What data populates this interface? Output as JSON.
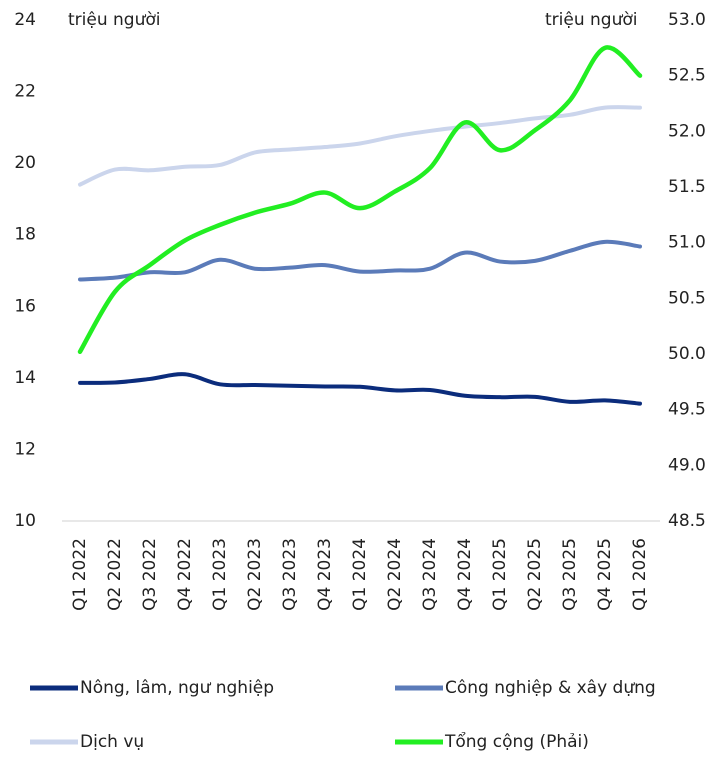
{
  "chart_data": {
    "type": "line",
    "y_label": "triệu người",
    "y2_label": "triệu người",
    "categories": [
      "Q1 2022",
      "Q2 2022",
      "Q3 2022",
      "Q4 2022",
      "Q1 2023",
      "Q2 2023",
      "Q3 2023",
      "Q4 2023",
      "Q1 2024",
      "Q2 2024",
      "Q3 2024",
      "Q4 2024",
      "Q1 2025",
      "Q2 2025",
      "Q3 2025",
      "Q4 2025",
      "Q1 2026"
    ],
    "ylim": [
      10,
      24
    ],
    "yticks": [
      10,
      12,
      14,
      16,
      18,
      20,
      22,
      24
    ],
    "y2lim": [
      48.5,
      53
    ],
    "y2ticks": [
      {
        "value": 48.5,
        "label": "48.5"
      },
      {
        "value": 49,
        "label": "49.0"
      },
      {
        "value": 49.5,
        "label": "49.5"
      },
      {
        "value": 50,
        "label": "50.0"
      },
      {
        "value": 50.5,
        "label": "50.5"
      },
      {
        "value": 51,
        "label": "51.0"
      },
      {
        "value": 51.5,
        "label": "51.5"
      },
      {
        "value": 52,
        "label": "52.0"
      },
      {
        "value": 52.5,
        "label": "52.5"
      },
      {
        "value": 53,
        "label": "53.0"
      }
    ],
    "series": [
      {
        "name": "Nông, lâm, ngư nghiệp",
        "color": "#0b2c7c",
        "values": [
          13.86,
          13.87,
          13.97,
          14.1,
          13.82,
          13.8,
          13.78,
          13.76,
          13.75,
          13.65,
          13.66,
          13.5,
          13.46,
          13.47,
          13.33,
          13.37,
          13.28
        ]
      },
      {
        "name": "Công nghiệp & xây dựng",
        "color": "#5b7bb9",
        "values": [
          16.75,
          16.8,
          16.95,
          16.95,
          17.3,
          17.05,
          17.08,
          17.15,
          16.97,
          17.0,
          17.05,
          17.5,
          17.25,
          17.27,
          17.55,
          17.8,
          17.67
        ]
      },
      {
        "name": "Dịch vụ",
        "color": "#cbd5ec",
        "values": [
          19.4,
          19.82,
          19.8,
          19.9,
          19.95,
          20.3,
          20.38,
          20.45,
          20.55,
          20.75,
          20.9,
          21.02,
          21.12,
          21.25,
          21.35,
          21.55,
          21.55
        ]
      },
      {
        "name": "Tổng cộng (Phải)",
        "color": "#22ee22",
        "axis": "y2",
        "values": [
          50.02,
          50.56,
          50.8,
          51.02,
          51.16,
          51.27,
          51.35,
          51.45,
          51.31,
          51.46,
          51.67,
          52.08,
          51.83,
          52.01,
          52.28,
          52.75,
          52.5
        ]
      }
    ]
  }
}
